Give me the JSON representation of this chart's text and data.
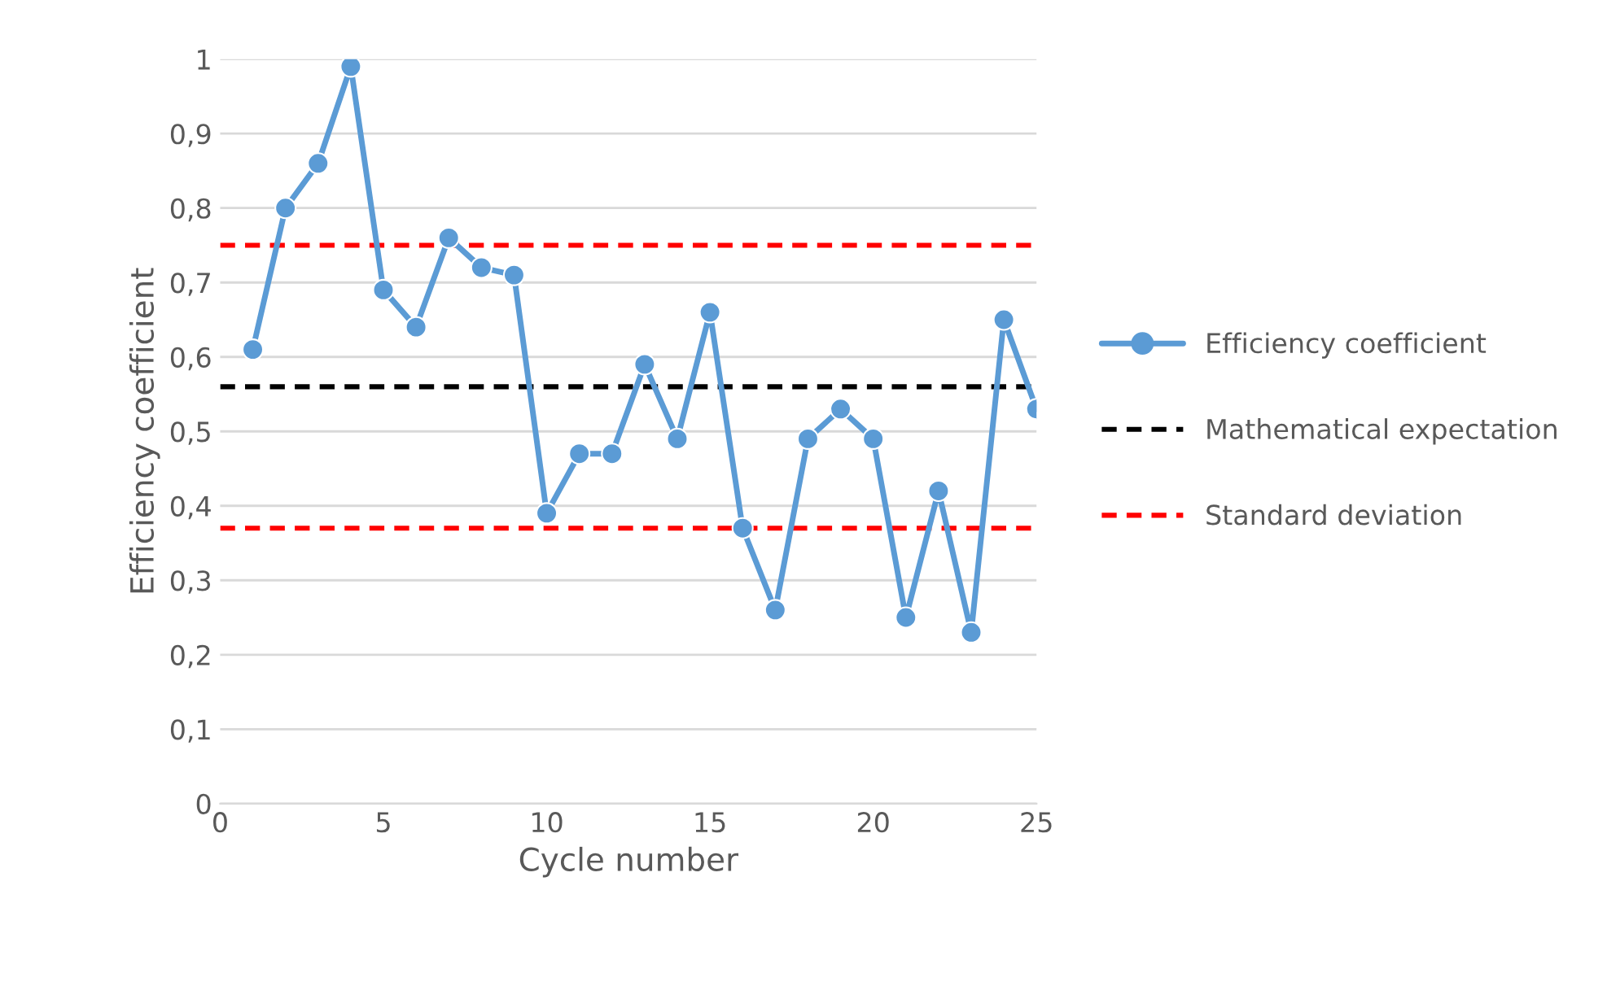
{
  "chart_data": {
    "type": "line",
    "xlabel": "Cycle number",
    "ylabel": "Efficiency coefficient",
    "x": [
      1,
      2,
      3,
      4,
      5,
      6,
      7,
      8,
      9,
      10,
      11,
      12,
      13,
      14,
      15,
      16,
      17,
      18,
      19,
      20,
      21,
      22,
      23,
      24,
      25
    ],
    "series": [
      {
        "name": "Efficiency coefficient",
        "color": "#5b9bd5",
        "values": [
          0.61,
          0.8,
          0.86,
          0.99,
          0.69,
          0.64,
          0.76,
          0.72,
          0.71,
          0.39,
          0.47,
          0.47,
          0.59,
          0.49,
          0.66,
          0.37,
          0.26,
          0.49,
          0.53,
          0.49,
          0.25,
          0.42,
          0.23,
          0.65,
          0.53
        ]
      }
    ],
    "ref_lines": [
      {
        "axis": "y",
        "value": 0.56,
        "label": "Mathematical expectation",
        "color": "#000000",
        "line_style": "dashed"
      },
      {
        "axis": "y",
        "value": 0.75,
        "label": "Standard deviation",
        "color": "#ff0000",
        "line_style": "dashed"
      },
      {
        "axis": "y",
        "value": 0.37,
        "label": null,
        "color": "#ff0000",
        "line_style": "dashed"
      }
    ],
    "xlim": [
      0,
      25
    ],
    "xticks": [
      0,
      5,
      10,
      15,
      20,
      25
    ],
    "ylim": [
      0,
      1
    ],
    "yticks": [
      0,
      {
        "value": 0.1,
        "label": "0,1"
      },
      {
        "value": 0.2,
        "label": "0,2"
      },
      {
        "value": 0.3,
        "label": "0,3"
      },
      {
        "value": 0.4,
        "label": "0,4"
      },
      {
        "value": 0.5,
        "label": "0,5"
      },
      {
        "value": 0.6,
        "label": "0,6"
      },
      {
        "value": 0.7,
        "label": "0,7"
      },
      {
        "value": 0.8,
        "label": "0,8"
      },
      {
        "value": 0.9,
        "label": "0,9"
      },
      1
    ],
    "grid": "y",
    "legend": "right",
    "marker": "circle",
    "line_style": "solid"
  }
}
